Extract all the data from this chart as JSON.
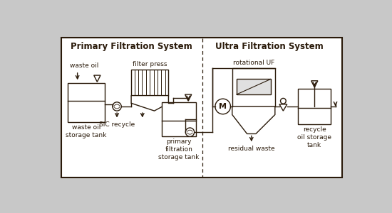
{
  "bg_color": "#c8c8c8",
  "line_color": "#2a1a0a",
  "title_primary": "Primary Filtration System",
  "title_ultra": "Ultra Filtration System",
  "label_waste_oil": "waste oil",
  "label_waste_tank": "waste oil\nstorage tank",
  "label_sic": "SiC recycle",
  "label_filter_press": "filter press",
  "label_primary_tank": "primary\nfiltration\nstorage tank",
  "label_rotational": "rotational UF",
  "label_residual": "residual waste",
  "label_recycle_tank": "recycle\noil storage\ntank",
  "label_M": "M",
  "font_size_title": 8.5,
  "font_size_label": 6.5,
  "line_width": 1.0
}
